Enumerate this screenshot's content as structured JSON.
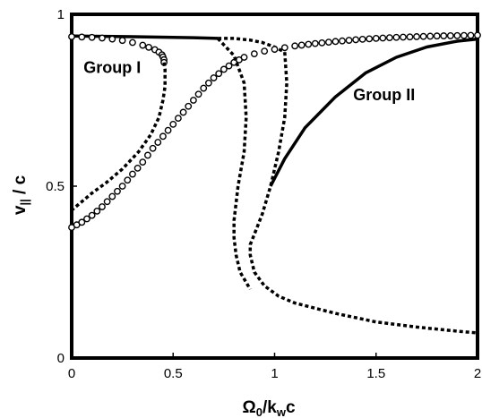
{
  "chart_data": {
    "type": "line",
    "title": "",
    "xlabel": "Ω",
    "xlabel_sub": "0",
    "xlabel_mid": "/k",
    "xlabel_sub2": "w",
    "xlabel_end": "c",
    "ylabel": "v",
    "ylabel_sub": "||",
    "ylabel_end": " / c",
    "xlim": [
      0,
      2
    ],
    "ylim": [
      0,
      1
    ],
    "x_ticks": [
      "0",
      "0.5",
      "1",
      "1.5",
      "2"
    ],
    "y_ticks": [
      "0",
      "0.5",
      "1"
    ],
    "grid": false,
    "legend": "none",
    "annotations": [
      {
        "text": "Group I",
        "x": 0.2,
        "y": 0.83
      },
      {
        "text": "Group II",
        "x": 1.54,
        "y": 0.75
      }
    ],
    "series": [
      {
        "style": "solid",
        "x": [
          0,
          0.3,
          0.6,
          0.72
        ],
        "y": [
          0.937,
          0.935,
          0.932,
          0.93
        ]
      },
      {
        "style": "dotted",
        "x": [
          0.72,
          0.8,
          0.88,
          0.94,
          1.0,
          1.05
        ],
        "y": [
          0.93,
          0.93,
          0.925,
          0.918,
          0.905,
          0.89
        ]
      },
      {
        "style": "dotted",
        "x": [
          1.05,
          1.06,
          1.05,
          1.02,
          0.98,
          0.94,
          0.9,
          0.88,
          0.88,
          0.9,
          0.95,
          1.02,
          1.1,
          1.3,
          1.5,
          1.7,
          1.9,
          2.0
        ],
        "y": [
          0.89,
          0.8,
          0.7,
          0.6,
          0.5,
          0.42,
          0.36,
          0.33,
          0.3,
          0.25,
          0.21,
          0.18,
          0.16,
          0.13,
          0.105,
          0.09,
          0.078,
          0.073
        ]
      },
      {
        "style": "circles",
        "x": [
          0,
          0.05,
          0.1,
          0.15,
          0.2,
          0.25,
          0.3,
          0.35,
          0.4,
          0.45,
          0.5,
          0.55,
          0.6,
          0.65,
          0.7,
          0.75,
          0.8,
          0.85,
          0.9,
          0.95,
          1.0,
          1.05,
          1.1,
          1.2,
          1.3,
          1.4,
          1.5,
          1.6,
          1.7,
          1.8,
          1.9,
          2.0
        ],
        "y": [
          0.38,
          0.395,
          0.415,
          0.44,
          0.47,
          0.5,
          0.535,
          0.57,
          0.61,
          0.645,
          0.68,
          0.715,
          0.75,
          0.785,
          0.815,
          0.84,
          0.86,
          0.875,
          0.885,
          0.893,
          0.898,
          0.903,
          0.908,
          0.915,
          0.921,
          0.926,
          0.93,
          0.933,
          0.935,
          0.937,
          0.938,
          0.939
        ]
      },
      {
        "style": "circles",
        "x": [
          0,
          0.05,
          0.1,
          0.15,
          0.2,
          0.25,
          0.3,
          0.35,
          0.38,
          0.41,
          0.43,
          0.445,
          0.45,
          0.455,
          0.455
        ],
        "y": [
          0.935,
          0.934,
          0.933,
          0.931,
          0.928,
          0.924,
          0.918,
          0.91,
          0.904,
          0.897,
          0.89,
          0.882,
          0.876,
          0.868,
          0.86
        ]
      },
      {
        "style": "dotted",
        "x": [
          0.455,
          0.46,
          0.46,
          0.45,
          0.43,
          0.39,
          0.33,
          0.25,
          0.17,
          0.1,
          0.05,
          0.02,
          0
        ],
        "y": [
          0.86,
          0.84,
          0.79,
          0.75,
          0.7,
          0.65,
          0.6,
          0.55,
          0.51,
          0.48,
          0.455,
          0.44,
          0.43
        ]
      },
      {
        "style": "dotted",
        "x": [
          0.72,
          0.8,
          0.85,
          0.86,
          0.85,
          0.82,
          0.8,
          0.8,
          0.81,
          0.83,
          0.86,
          0.88
        ],
        "y": [
          0.93,
          0.88,
          0.8,
          0.7,
          0.6,
          0.5,
          0.4,
          0.35,
          0.3,
          0.25,
          0.22,
          0.2
        ]
      },
      {
        "style": "solid",
        "x": [
          0.98,
          1.05,
          1.15,
          1.3,
          1.45,
          1.6,
          1.75,
          1.9,
          2.0
        ],
        "y": [
          0.5,
          0.58,
          0.67,
          0.76,
          0.83,
          0.875,
          0.905,
          0.922,
          0.928
        ]
      }
    ]
  }
}
